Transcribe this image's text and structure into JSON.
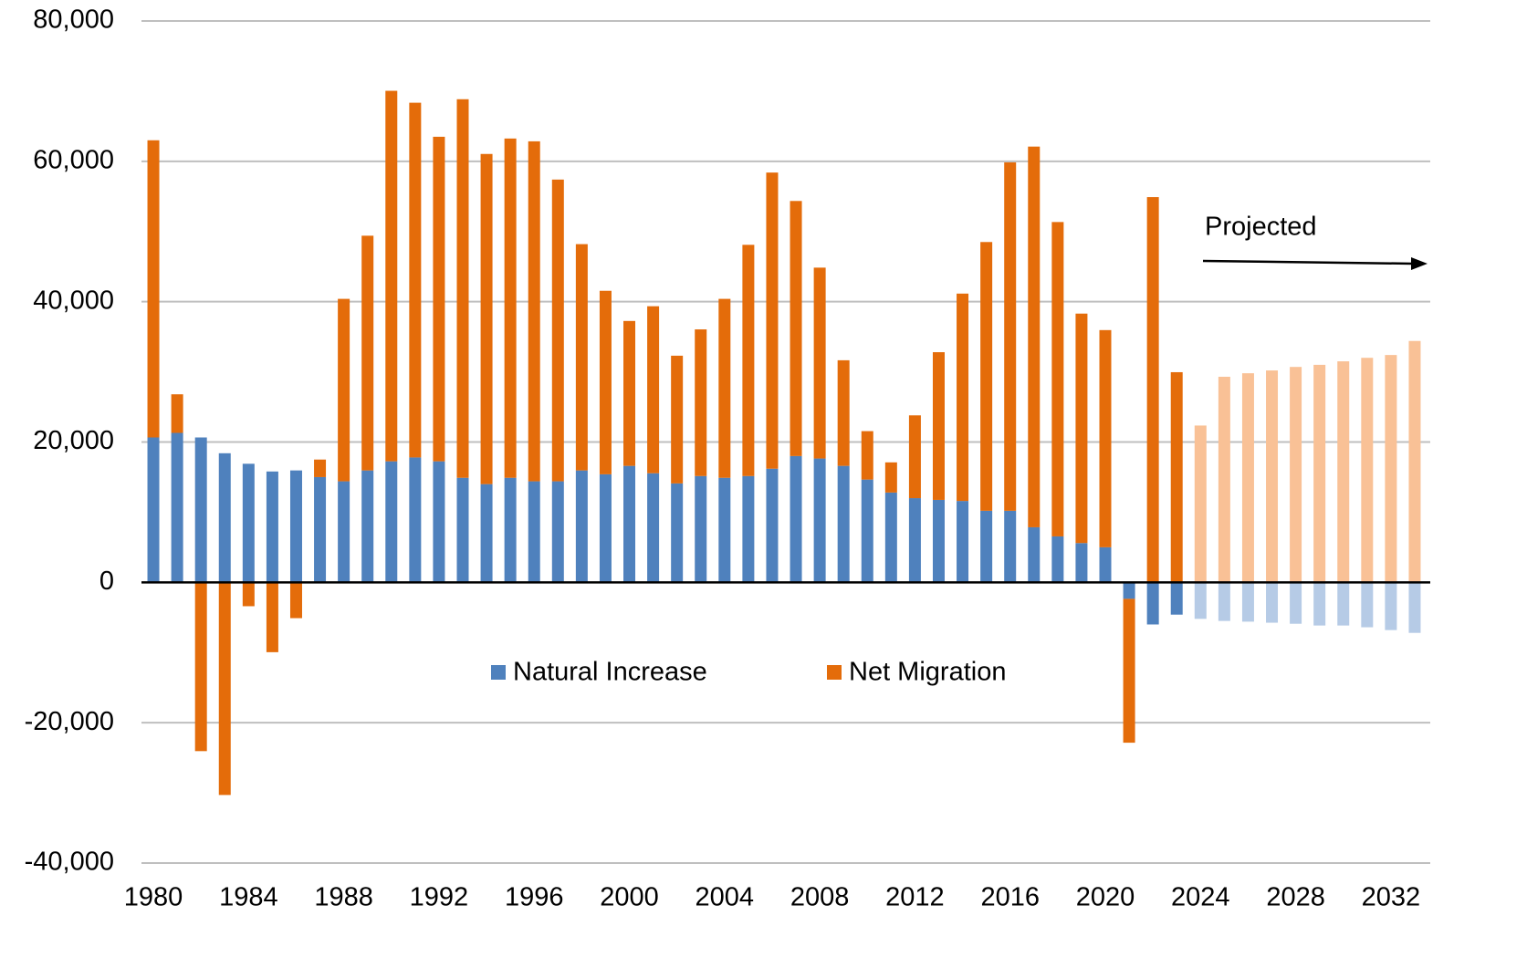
{
  "chart_data": {
    "type": "stacked_bar",
    "categories": [
      "1980",
      null,
      null,
      null,
      "1984",
      null,
      null,
      null,
      "1988",
      null,
      null,
      null,
      "1992",
      null,
      null,
      null,
      "1996",
      null,
      null,
      null,
      "2000",
      null,
      null,
      null,
      "2004",
      null,
      null,
      null,
      "2008",
      null,
      null,
      null,
      "2012",
      null,
      null,
      null,
      "2016",
      null,
      null,
      null,
      "2020",
      null,
      null,
      null,
      "2024",
      null,
      null,
      null,
      "2028",
      null,
      null,
      null,
      "2032",
      null
    ],
    "series": [
      {
        "name": "Natural Increase",
        "color": "#4f81bd",
        "projected_color": "#b6cbe6",
        "values": [
          20650,
          21300,
          20650,
          18400,
          16900,
          15800,
          15950,
          15000,
          14400,
          15950,
          17250,
          17800,
          17250,
          14900,
          14000,
          14900,
          14400,
          14400,
          15950,
          15400,
          16600,
          15550,
          14100,
          15150,
          14900,
          15150,
          16200,
          18000,
          17650,
          16600,
          14650,
          12800,
          12000,
          11750,
          11600,
          10200,
          10200,
          7850,
          6550,
          5600,
          5000,
          -2350,
          -6000,
          -4600,
          -5200,
          -5500,
          -5600,
          -5750,
          -5900,
          -6150,
          -6150,
          -6400,
          -6800,
          -7200
        ]
      },
      {
        "name": "Net Migration",
        "color": "#e46c0a",
        "projected_color": "#f9c196",
        "values": [
          42350,
          5500,
          -24050,
          -30300,
          -3400,
          -9950,
          -5100,
          2500,
          26000,
          33450,
          52800,
          50550,
          46250,
          53950,
          47050,
          48350,
          48450,
          43000,
          32250,
          26150,
          20650,
          23800,
          18200,
          20900,
          25500,
          32950,
          42200,
          36350,
          27200,
          15050,
          6900,
          4300,
          11800,
          21050,
          29550,
          38300,
          49650,
          54250,
          44800,
          32700,
          30950,
          -20500,
          54900,
          29950,
          22350,
          29300,
          29800,
          30200,
          30700,
          31000,
          31500,
          32000,
          32400,
          34400
        ]
      }
    ],
    "projected_from": 44,
    "annotation": "Projected",
    "ylim": [
      -40000,
      80000
    ],
    "yticks": [
      {
        "value": -40000,
        "label": "-40,000"
      },
      {
        "value": -20000,
        "label": "-20,000"
      },
      0,
      {
        "value": 20000,
        "label": "20,000"
      },
      {
        "value": 40000,
        "label": "40,000"
      },
      {
        "value": 60000,
        "label": "60,000"
      },
      {
        "value": 80000,
        "label": "80,000"
      }
    ],
    "grid": true
  }
}
